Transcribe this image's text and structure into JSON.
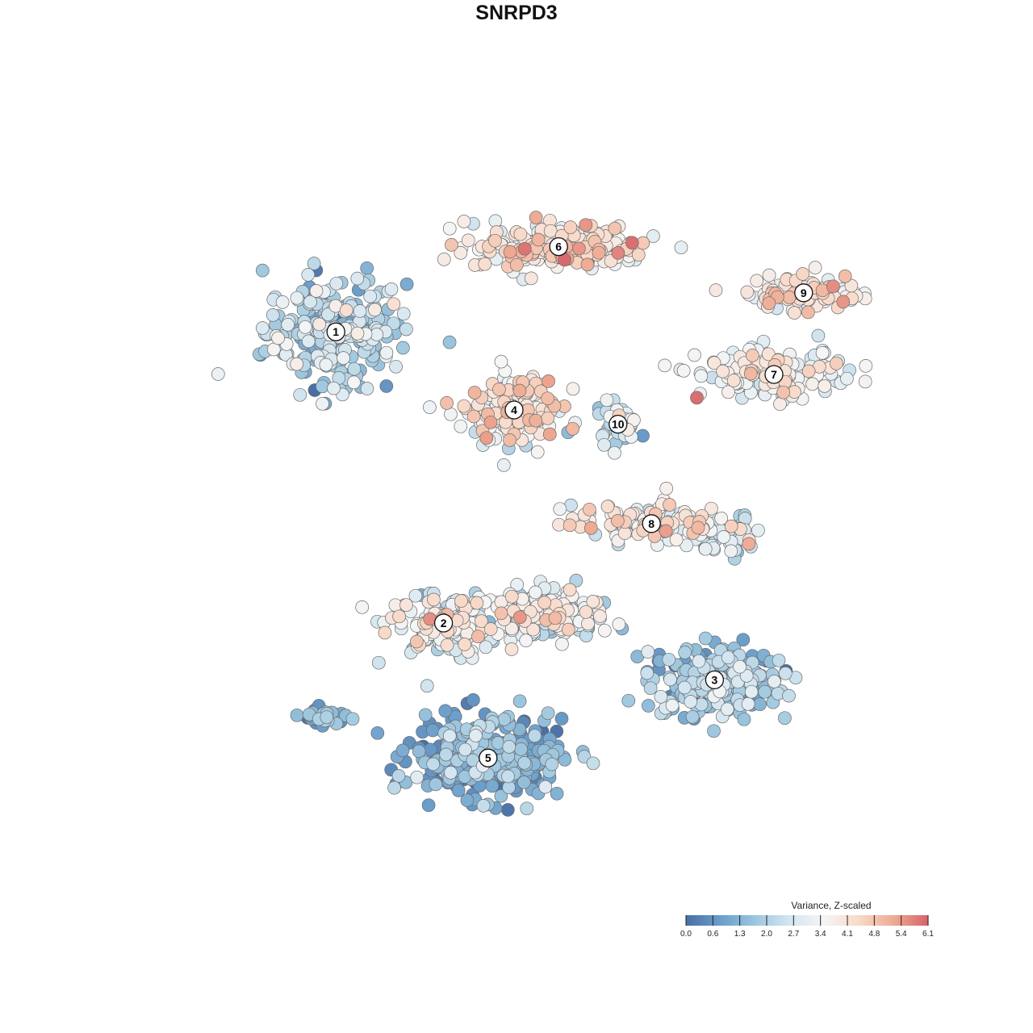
{
  "title": "SNRPD3",
  "chart_data": {
    "type": "scatter",
    "title": "SNRPD3",
    "xlabel": "",
    "ylabel": "",
    "grid": false,
    "color_scale": {
      "title": "Variance, Z-scaled",
      "min": 0.0,
      "max": 6.1,
      "ticks": [
        "0.0",
        "0.6",
        "1.3",
        "2.0",
        "2.7",
        "3.4",
        "4.1",
        "4.8",
        "5.4",
        "6.1"
      ],
      "colors": [
        "#4a6fa5",
        "#6a9ecb",
        "#9cc6de",
        "#d4e6f0",
        "#f5f5f5",
        "#f8d9c8",
        "#eeab93",
        "#d6636b"
      ]
    },
    "legend_placement": "bottom-right",
    "clusters": [
      {
        "label": "1",
        "x": -0.53,
        "y": 0.52,
        "spread_x": 0.17,
        "spread_y": 0.14,
        "n": 260,
        "mean_value": 2.1
      },
      {
        "label": "2",
        "x": -0.24,
        "y": -0.3,
        "spread_x": 0.14,
        "spread_y": 0.08,
        "n": 150,
        "mean_value": 3.2
      },
      {
        "label": "3",
        "x": 0.49,
        "y": -0.46,
        "spread_x": 0.17,
        "spread_y": 0.09,
        "n": 230,
        "mean_value": 1.6
      },
      {
        "label": "4",
        "x": -0.05,
        "y": 0.3,
        "spread_x": 0.11,
        "spread_y": 0.09,
        "n": 170,
        "mean_value": 3.7
      },
      {
        "label": "5",
        "x": -0.12,
        "y": -0.68,
        "spread_x": 0.18,
        "spread_y": 0.1,
        "n": 330,
        "mean_value": 1.0
      },
      {
        "label": "6",
        "x": 0.07,
        "y": 0.76,
        "spread_x": 0.22,
        "spread_y": 0.06,
        "n": 220,
        "mean_value": 3.9
      },
      {
        "label": "7",
        "x": 0.65,
        "y": 0.4,
        "spread_x": 0.18,
        "spread_y": 0.06,
        "n": 140,
        "mean_value": 3.3
      },
      {
        "label": "8",
        "x": 0.32,
        "y": -0.02,
        "spread_x": 0.2,
        "spread_y": 0.05,
        "n": 110,
        "mean_value": 3.6
      },
      {
        "label": "9",
        "x": 0.73,
        "y": 0.63,
        "spread_x": 0.14,
        "spread_y": 0.05,
        "n": 90,
        "mean_value": 3.9
      },
      {
        "label": "10",
        "x": 0.23,
        "y": 0.26,
        "spread_x": 0.05,
        "spread_y": 0.05,
        "n": 40,
        "mean_value": 2.6
      },
      {
        "label": "",
        "x": 0.05,
        "y": -0.27,
        "spread_x": 0.15,
        "spread_y": 0.06,
        "n": 180,
        "mean_value": 3.0
      },
      {
        "label": "",
        "x": -0.57,
        "y": -0.57,
        "spread_x": 0.06,
        "spread_y": 0.03,
        "n": 28,
        "mean_value": 1.2
      },
      {
        "label": "",
        "x": 0.52,
        "y": -0.05,
        "spread_x": 0.07,
        "spread_y": 0.05,
        "n": 50,
        "mean_value": 2.3
      }
    ]
  }
}
